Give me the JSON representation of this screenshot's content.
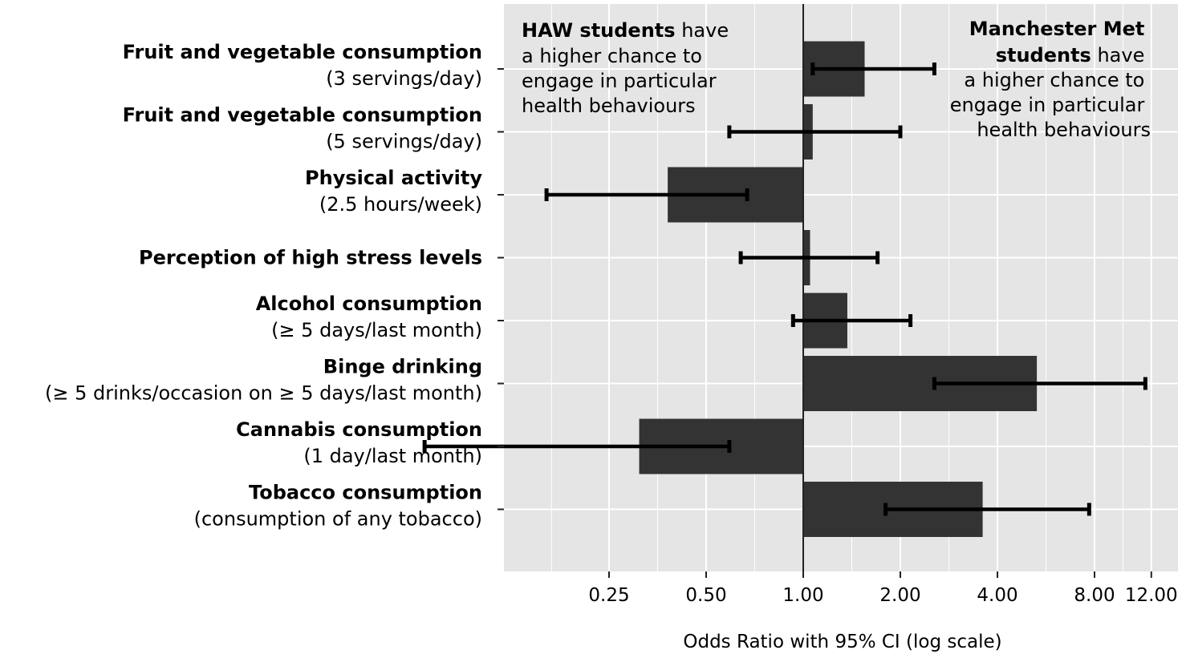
{
  "chart_data": {
    "type": "bar",
    "orientation": "horizontal",
    "x_scale": "log",
    "baseline": 1.0,
    "categories": [
      {
        "label": "Fruit and vegetable consumption",
        "sublabel": "(3 servings/day)"
      },
      {
        "label": "Fruit and vegetable consumption",
        "sublabel": "(5 servings/day)"
      },
      {
        "label": "Physical activity",
        "sublabel": "(2.5 hours/week)"
      },
      {
        "label": "Perception of high stress levels",
        "sublabel": ""
      },
      {
        "label": "Alcohol consumption",
        "sublabel": "(≥ 5 days/last month)"
      },
      {
        "label": "Binge drinking",
        "sublabel": "(≥ 5 drinks/occasion on ≥ 5 days/last month)"
      },
      {
        "label": "Cannabis consumption",
        "sublabel": "(1 day/last month)"
      },
      {
        "label": "Tobacco consumption",
        "sublabel": "(consumption of any tobacco)"
      }
    ],
    "series": [
      {
        "values": [
          1.55,
          1.07,
          0.38,
          1.05,
          1.37,
          5.3,
          0.31,
          3.6
        ],
        "ci_low": [
          1.07,
          0.59,
          0.16,
          0.64,
          0.93,
          2.55,
          0.067,
          1.8
        ],
        "ci_high": [
          2.55,
          2.0,
          0.67,
          1.7,
          2.15,
          11.5,
          0.59,
          7.7
        ]
      }
    ],
    "xlabel": "Odds Ratio with 95% CI (log scale)",
    "ylabel": "",
    "x_ticks": [
      "0.25",
      "0.50",
      "1.00",
      "2.00",
      "4.00",
      "8.00",
      "12.00"
    ],
    "xlim": [
      0.055,
      14.0
    ],
    "grid": true,
    "annotations": {
      "left": {
        "bold": "HAW students",
        "lines": [
          " have",
          "a higher chance to",
          "engage in particular",
          "health behaviours"
        ]
      },
      "right": {
        "bold_lines": [
          "Manchester Met",
          "students"
        ],
        "lines": [
          " have",
          "a higher chance to",
          "engage in particular",
          "health behaviours"
        ]
      }
    },
    "colors": {
      "panel": "#e5e5e5",
      "grid": "#ffffff",
      "bar": "#333333",
      "errorbar": "#000000"
    }
  }
}
